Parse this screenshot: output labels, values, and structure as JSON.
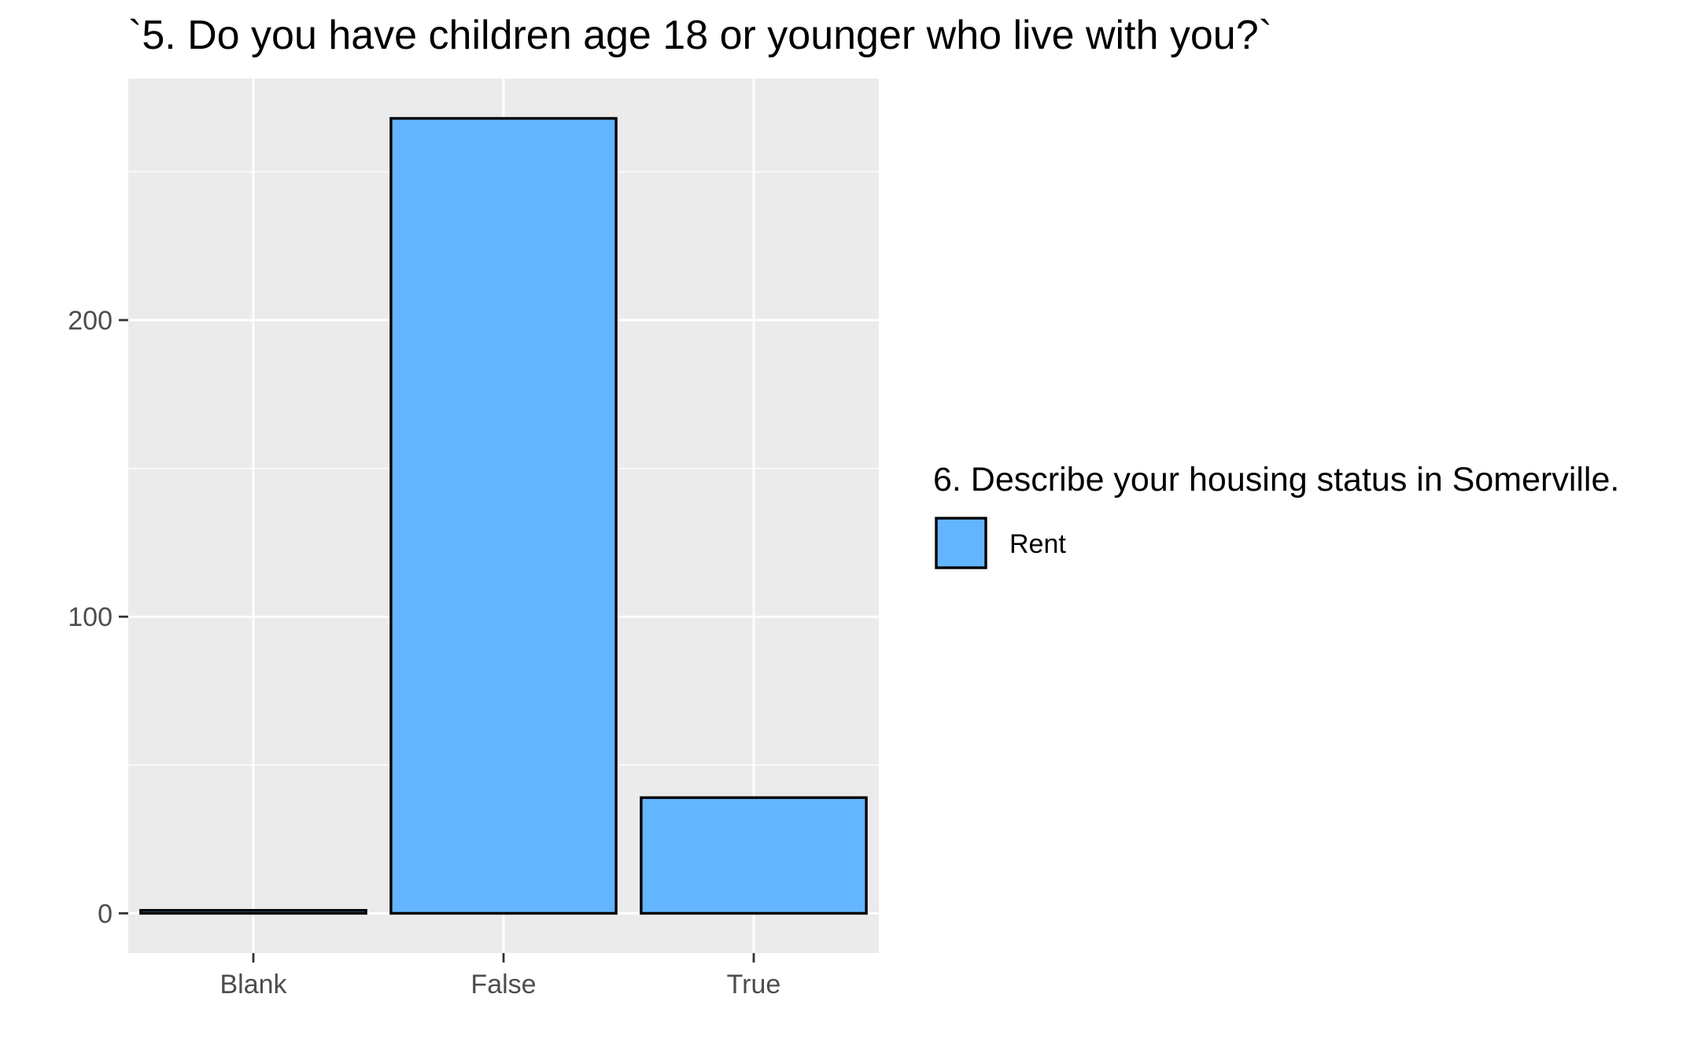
{
  "chart_data": {
    "type": "bar",
    "title": "`5. Do you have children age 18 or younger who live with you?`",
    "xlabel": "",
    "ylabel": "",
    "categories": [
      "Blank",
      "False",
      "True"
    ],
    "series": [
      {
        "name": "Rent",
        "values": [
          1,
          268,
          39
        ]
      }
    ],
    "ylim": [
      -13.4,
      281.4
    ],
    "y_major_ticks": [
      0,
      100,
      200
    ],
    "y_tick_labels": [
      "0",
      "100",
      "200"
    ],
    "y_minor_gridlines": [
      50,
      150,
      250
    ],
    "grid": true,
    "legend": {
      "title": "6. Describe your housing status in Somerville.",
      "placement": "right",
      "entries": [
        {
          "label": "Rent",
          "color": "#63B5FF"
        }
      ]
    },
    "colors": {
      "panel_background": "#EBEBEB",
      "grid": "#FFFFFF",
      "bar_fill": "#63B5FF",
      "bar_outline": "#000000",
      "tick_text": "#4D4D4D",
      "tick_mark": "#333333"
    }
  }
}
